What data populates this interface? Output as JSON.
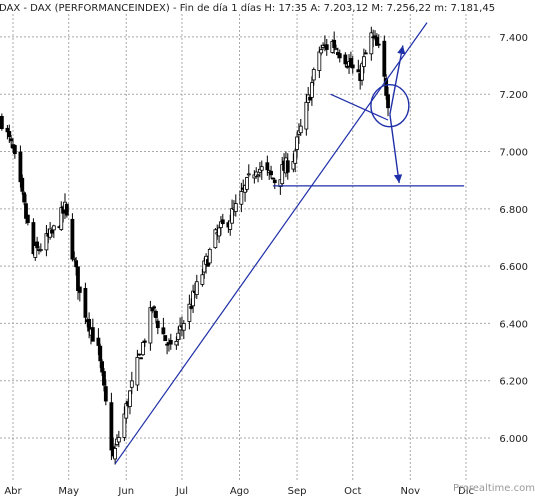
{
  "chart_data": {
    "type": "candlestick",
    "title": "DAX - DAX (PERFORMANCEINDEX) - Fin de día 1 días H: 17:35  A: 7.203,12  M: 7.256,22  m: 7.181,45",
    "xlabel": "",
    "ylabel": "",
    "x_ticks": [
      "Abr",
      "May",
      "Jun",
      "Jul",
      "Ago",
      "Sep",
      "Oct",
      "Nov",
      "Dic"
    ],
    "y_ticks": [
      "6.000",
      "6.200",
      "6.400",
      "6.600",
      "6.800",
      "7.000",
      "7.200",
      "7.400"
    ],
    "ylim": [
      5850,
      7480
    ],
    "grid": true,
    "x_range": [
      "2010-03-25",
      "2010-12-15"
    ],
    "closes_approx": [
      {
        "date": "2010-03-26",
        "close": 7110
      },
      {
        "date": "2010-04-01",
        "close": 7000
      },
      {
        "date": "2010-04-12",
        "close": 6640
      },
      {
        "date": "2010-04-22",
        "close": 6710
      },
      {
        "date": "2010-04-29",
        "close": 6800
      },
      {
        "date": "2010-05-07",
        "close": 6500
      },
      {
        "date": "2010-05-17",
        "close": 6300
      },
      {
        "date": "2010-05-25",
        "close": 5930
      },
      {
        "date": "2010-06-04",
        "close": 6180
      },
      {
        "date": "2010-06-15",
        "close": 6450
      },
      {
        "date": "2010-06-25",
        "close": 6300
      },
      {
        "date": "2010-07-06",
        "close": 6470
      },
      {
        "date": "2010-07-19",
        "close": 6700
      },
      {
        "date": "2010-07-30",
        "close": 6800
      },
      {
        "date": "2010-08-10",
        "close": 6950
      },
      {
        "date": "2010-08-20",
        "close": 6900
      },
      {
        "date": "2010-08-30",
        "close": 6980
      },
      {
        "date": "2010-09-06",
        "close": 7150
      },
      {
        "date": "2010-09-13",
        "close": 7350
      },
      {
        "date": "2010-09-20",
        "close": 7380
      },
      {
        "date": "2010-09-27",
        "close": 7330
      },
      {
        "date": "2010-10-04",
        "close": 7250
      },
      {
        "date": "2010-10-11",
        "close": 7400
      },
      {
        "date": "2010-10-15",
        "close": 7350
      },
      {
        "date": "2010-10-20",
        "close": 7180
      }
    ],
    "annotations": [
      {
        "type": "trendline",
        "from": {
          "date": "2010-05-26",
          "value": 5910
        },
        "to": {
          "date": "2010-11-10",
          "value": 7450
        }
      },
      {
        "type": "support_line",
        "from": {
          "date": "2010-08-19",
          "value": 6880
        },
        "to": {
          "date": "2010-11-30",
          "value": 6880
        }
      },
      {
        "type": "trendline",
        "from": {
          "date": "2010-09-19",
          "value": 7200
        },
        "to": {
          "date": "2010-10-20",
          "value": 7110
        }
      },
      {
        "type": "circle",
        "center": {
          "date": "2010-10-21",
          "value": 7160
        }
      },
      {
        "type": "arrow",
        "from": {
          "date": "2010-10-21",
          "value": 7130
        },
        "to": {
          "date": "2010-10-28",
          "value": 7370
        }
      },
      {
        "type": "arrow",
        "from": {
          "date": "2010-10-21",
          "value": 7130
        },
        "to": {
          "date": "2010-10-26",
          "value": 6890
        }
      }
    ],
    "watermark": "Prorealtime.com"
  }
}
